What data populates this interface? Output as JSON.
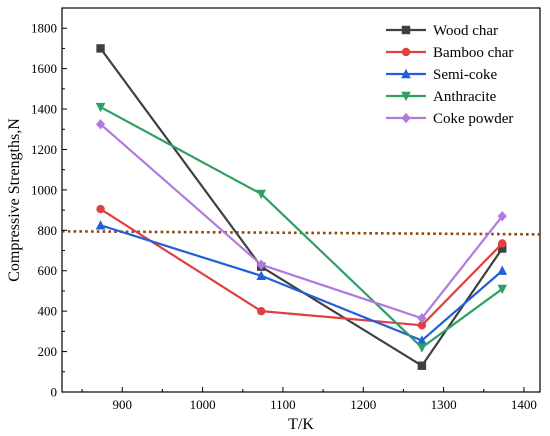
{
  "chart_data": {
    "type": "line",
    "xlabel": "T/K",
    "ylabel": "Compressive Strengths,N",
    "xlim": [
      825,
      1420
    ],
    "ylim": [
      0,
      1900
    ],
    "xticks": [
      900,
      1000,
      1100,
      1200,
      1300,
      1400
    ],
    "yticks": [
      0,
      200,
      400,
      600,
      800,
      1000,
      1200,
      1400,
      1600,
      1800
    ],
    "legend_position": "top-right",
    "grid": false,
    "x": [
      873,
      1073,
      1273,
      1373
    ],
    "series": [
      {
        "name": "Wood char",
        "values": [
          1700,
          620,
          130,
          710
        ],
        "color": "#404040",
        "marker": "square"
      },
      {
        "name": "Bamboo char",
        "values": [
          905,
          400,
          330,
          735
        ],
        "color": "#e0403f",
        "marker": "circle"
      },
      {
        "name": "Semi-coke",
        "values": [
          825,
          575,
          255,
          600
        ],
        "color": "#2060d8",
        "marker": "triangle-up"
      },
      {
        "name": "Anthracite",
        "values": [
          1410,
          980,
          220,
          510
        ],
        "color": "#30a060",
        "marker": "triangle-down"
      },
      {
        "name": "Coke powder",
        "values": [
          1325,
          630,
          365,
          870
        ],
        "color": "#b07ae0",
        "marker": "diamond"
      }
    ],
    "reference_line": {
      "y_start": 795,
      "y_end": 780,
      "color": "#8b4a0b",
      "style": "dotted"
    }
  }
}
